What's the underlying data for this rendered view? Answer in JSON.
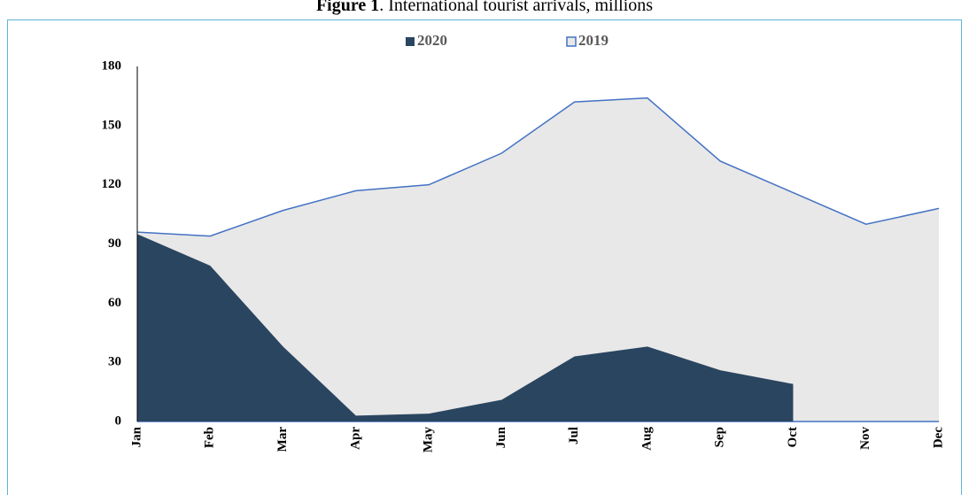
{
  "chart_data": {
    "type": "area",
    "title_bold": "Figure 1",
    "title": ". International tourist arrivals, millions",
    "categories": [
      "Jan",
      "Feb",
      "Mar",
      "Apr",
      "May",
      "Jun",
      "Jul",
      "Aug",
      "Sep",
      "Oct",
      "Nov",
      "Dec"
    ],
    "series": [
      {
        "name": "2020",
        "color": "#2a4560",
        "values": [
          95,
          79,
          38,
          3,
          4,
          11,
          33,
          38,
          26,
          19,
          null,
          null
        ]
      },
      {
        "name": "2019",
        "color": "#4472c4",
        "fill": "#e8e8e8",
        "values": [
          96,
          94,
          107,
          117,
          120,
          136,
          162,
          164,
          132,
          116,
          100,
          108
        ]
      }
    ],
    "ylim": [
      0,
      180
    ],
    "yticks": [
      0,
      30,
      60,
      90,
      120,
      150,
      180
    ],
    "grid": false,
    "legend": "top"
  }
}
